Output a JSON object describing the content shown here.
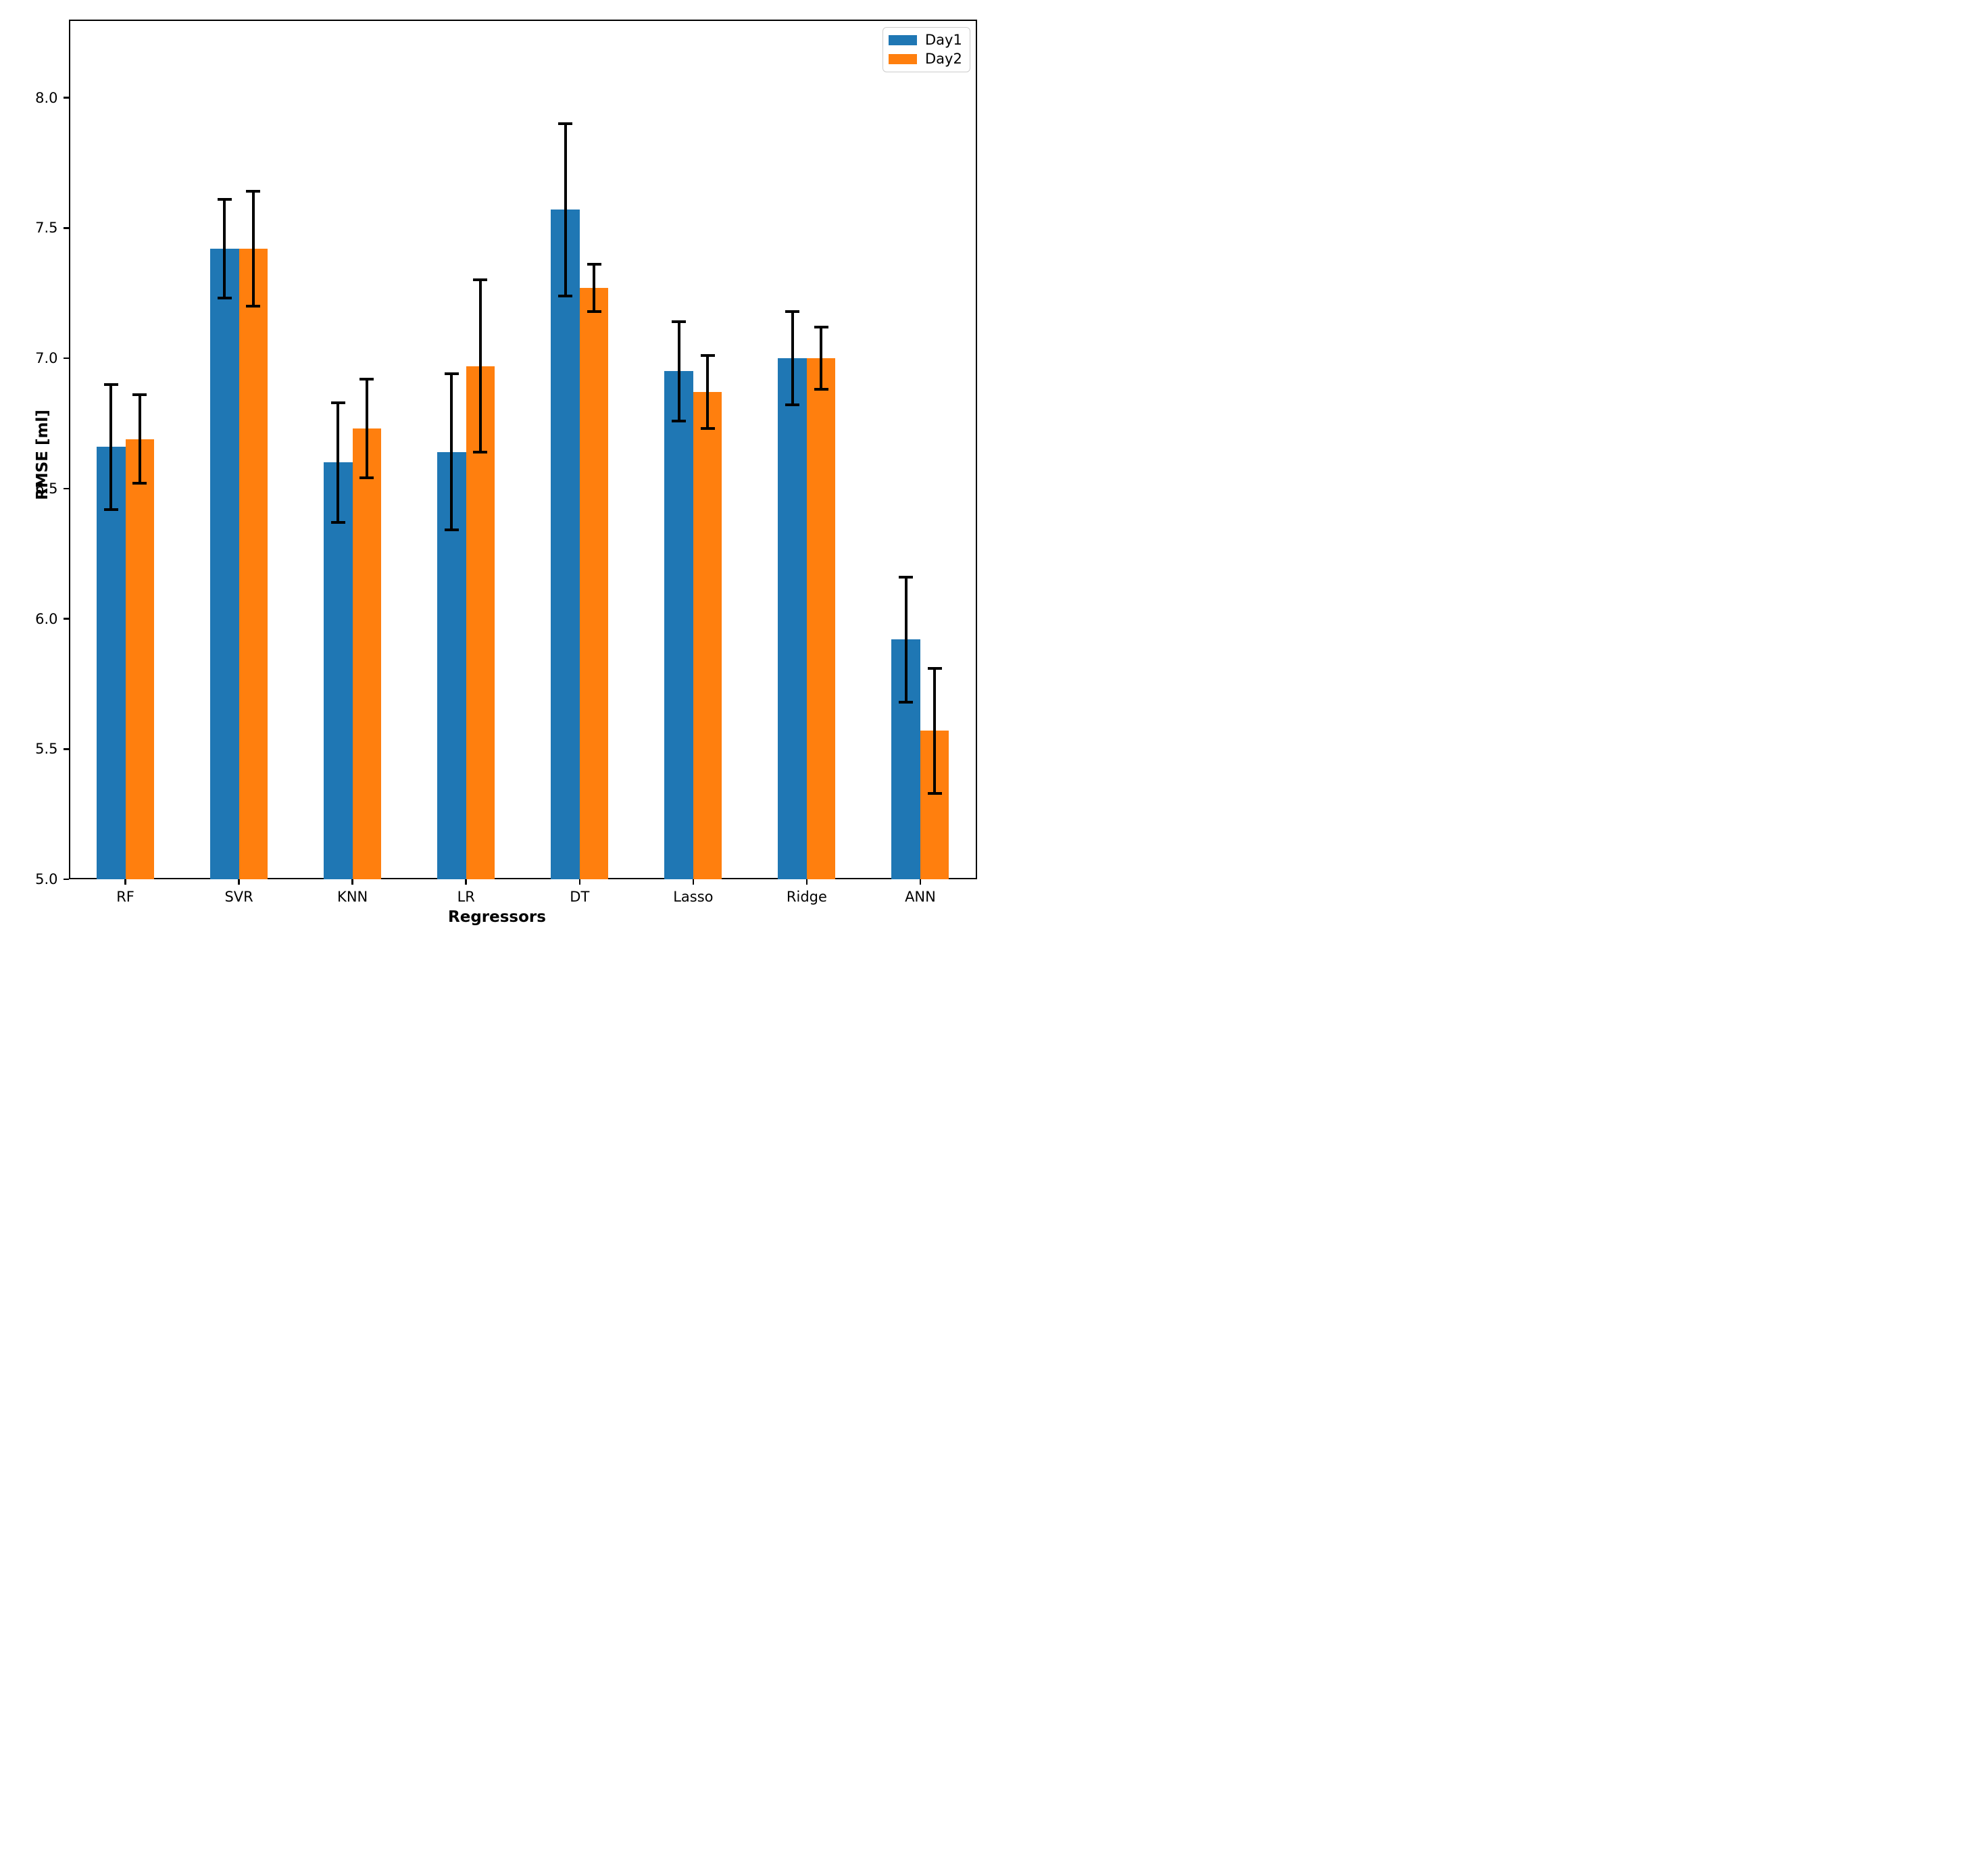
{
  "figure": {
    "background": "#ffffff"
  },
  "chart_data": {
    "type": "bar",
    "title": "",
    "xlabel": "Regressors",
    "ylabel": "RMSE [ml]",
    "categories": [
      "RF",
      "SVR",
      "KNN",
      "LR",
      "DT",
      "Lasso",
      "Ridge",
      "ANN"
    ],
    "series": [
      {
        "name": "Day1",
        "color": "#1f77b4",
        "values": [
          6.66,
          7.42,
          6.6,
          6.64,
          7.57,
          6.95,
          7.0,
          5.92
        ],
        "errors": [
          0.24,
          0.19,
          0.23,
          0.3,
          0.33,
          0.19,
          0.18,
          0.24
        ]
      },
      {
        "name": "Day2",
        "color": "#ff7f0e",
        "values": [
          6.69,
          7.42,
          6.73,
          6.97,
          7.27,
          6.87,
          7.0,
          5.57
        ],
        "errors": [
          0.17,
          0.22,
          0.19,
          0.33,
          0.09,
          0.14,
          0.12,
          0.24
        ]
      }
    ],
    "error_bar_color": "#000000",
    "ylim": [
      5.0,
      8.3
    ],
    "yticks": [
      5.0,
      5.5,
      6.0,
      6.5,
      7.0,
      7.5,
      8.0
    ],
    "ytick_labels": [
      "5.0",
      "5.5",
      "6.0",
      "6.5",
      "7.0",
      "7.5",
      "8.0"
    ],
    "grid": false,
    "legend": {
      "position": "upper right",
      "entries": [
        "Day1",
        "Day2"
      ]
    }
  }
}
